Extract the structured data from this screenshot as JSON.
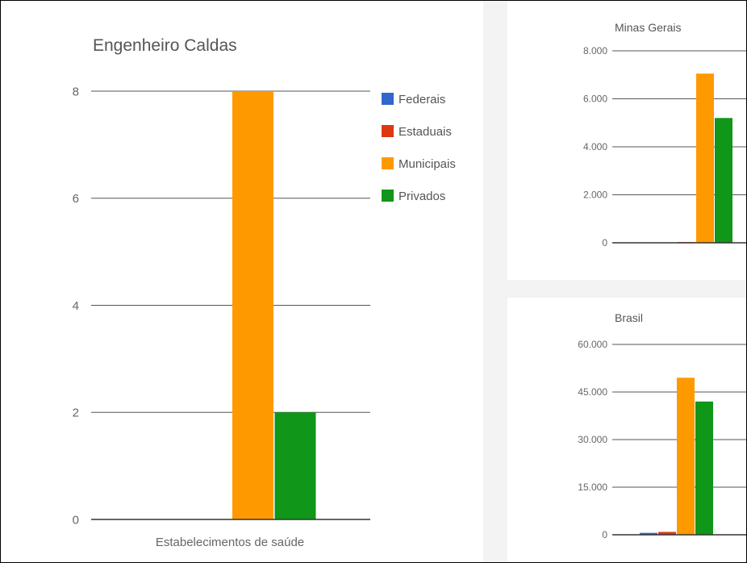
{
  "colors": {
    "Federais": "#3366cc",
    "Estaduais": "#dc3912",
    "Municipais": "#ff9900",
    "Privados": "#109618"
  },
  "legend": [
    {
      "label": "Federais"
    },
    {
      "label": "Estaduais"
    },
    {
      "label": "Municipais"
    },
    {
      "label": "Privados"
    }
  ],
  "chart_data": [
    {
      "type": "bar",
      "title": "Engenheiro Caldas",
      "xlabel": "",
      "ylabel": "",
      "categories": [
        "Estabelecimentos de saúde"
      ],
      "series": [
        {
          "name": "Federais",
          "values": [
            0
          ]
        },
        {
          "name": "Estaduais",
          "values": [
            0
          ]
        },
        {
          "name": "Municipais",
          "values": [
            8
          ]
        },
        {
          "name": "Privados",
          "values": [
            2
          ]
        }
      ],
      "ylim": [
        0,
        8
      ],
      "yticks": [
        "0",
        "2",
        "4",
        "6",
        "8"
      ],
      "grid": true,
      "legend": "right"
    },
    {
      "type": "bar",
      "title": "Minas Gerais",
      "xlabel": "",
      "ylabel": "",
      "series": [
        {
          "name": "Federais",
          "values": [
            15
          ]
        },
        {
          "name": "Estaduais",
          "values": [
            30
          ]
        },
        {
          "name": "Municipais",
          "values": [
            7050
          ]
        },
        {
          "name": "Privados",
          "values": [
            5200
          ]
        }
      ],
      "ylim": [
        0,
        8000
      ],
      "yticks": [
        "0",
        "2.000",
        "4.000",
        "6.000",
        "8.000"
      ],
      "grid": true
    },
    {
      "type": "bar",
      "title": "Brasil",
      "xlabel": "",
      "ylabel": "",
      "series": [
        {
          "name": "Federais",
          "values": [
            600
          ]
        },
        {
          "name": "Estaduais",
          "values": [
            900
          ]
        },
        {
          "name": "Municipais",
          "values": [
            49500
          ]
        },
        {
          "name": "Privados",
          "values": [
            42000
          ]
        }
      ],
      "ylim": [
        0,
        60000
      ],
      "yticks": [
        "0",
        "15.000",
        "30.000",
        "45.000",
        "60.000"
      ],
      "grid": true
    }
  ]
}
